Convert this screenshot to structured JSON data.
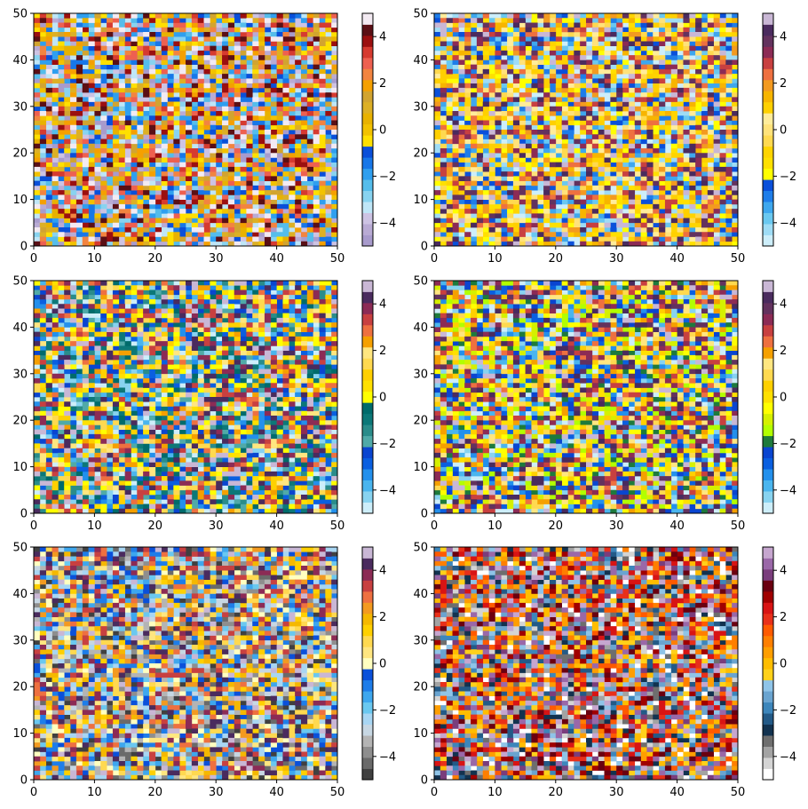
{
  "chart_data": [
    {
      "type": "heatmap",
      "seed": 11,
      "xlim": [
        0,
        50
      ],
      "ylim": [
        0,
        50
      ],
      "x_ticks": [
        "0",
        "10",
        "20",
        "30",
        "40",
        "50"
      ],
      "y_ticks": [
        "0",
        "10",
        "20",
        "30",
        "40",
        "50"
      ],
      "grid": false,
      "colorbar": {
        "vmin": -5,
        "vmax": 5,
        "ticks": [
          "−4",
          "−2",
          "0",
          "2",
          "4"
        ],
        "colors": [
          "#a89bcc",
          "#b9abd4",
          "#cdc3e3",
          "#bfe6f7",
          "#88d3f0",
          "#55bdeb",
          "#2f9fef",
          "#1777e8",
          "#0a4fd9",
          "#ffe000",
          "#f2c200",
          "#e8b200",
          "#ddb025",
          "#d2a430",
          "#f5a000",
          "#f28440",
          "#ee6050",
          "#d63a30",
          "#9b0f10",
          "#5a0f15",
          "#f3eaf2"
        ]
      }
    },
    {
      "type": "heatmap",
      "seed": 22,
      "xlim": [
        0,
        50
      ],
      "ylim": [
        0,
        50
      ],
      "x_ticks": [
        "0",
        "10",
        "20",
        "30",
        "40",
        "50"
      ],
      "y_ticks": [
        "0",
        "10",
        "20",
        "30",
        "40",
        "50"
      ],
      "grid": false,
      "colorbar": {
        "vmin": -5,
        "vmax": 5,
        "ticks": [
          "−4",
          "−2",
          "0",
          "2",
          "4"
        ],
        "colors": [
          "#cdeefa",
          "#9fdcf5",
          "#6ac8f0",
          "#3ea7ee",
          "#1e7de9",
          "#0a50da",
          "#ffff00",
          "#ffe000",
          "#ffd400",
          "#ffd950",
          "#ffe27a",
          "#ffec9a",
          "#ffd000",
          "#f7b500",
          "#f39a20",
          "#ee7040",
          "#c84040",
          "#8c2b55",
          "#63325e",
          "#4a2b5e",
          "#c9b7d5"
        ]
      }
    },
    {
      "type": "heatmap",
      "seed": 33,
      "xlim": [
        0,
        50
      ],
      "ylim": [
        0,
        50
      ],
      "x_ticks": [
        "0",
        "10",
        "20",
        "30",
        "40",
        "50"
      ],
      "y_ticks": [
        "0",
        "10",
        "20",
        "30",
        "40",
        "50"
      ],
      "grid": false,
      "colorbar": {
        "vmin": -5,
        "vmax": 5,
        "ticks": [
          "−4",
          "−2",
          "0",
          "2",
          "4"
        ],
        "colors": [
          "#cdeefa",
          "#88d3f0",
          "#4ab5ee",
          "#2390ec",
          "#0a5fe0",
          "#0a45d0",
          "#50aaa8",
          "#2a8c8a",
          "#0c7878",
          "#006b6b",
          "#ffff00",
          "#ffe000",
          "#ffd000",
          "#ffd950",
          "#ffe680",
          "#f5a000",
          "#ee7040",
          "#c84040",
          "#8c2b55",
          "#4a2b5e",
          "#c9b7d5"
        ]
      }
    },
    {
      "type": "heatmap",
      "seed": 44,
      "xlim": [
        0,
        50
      ],
      "ylim": [
        0,
        50
      ],
      "x_ticks": [
        "0",
        "10",
        "20",
        "30",
        "40",
        "50"
      ],
      "y_ticks": [
        "0",
        "10",
        "20",
        "30",
        "40",
        "50"
      ],
      "grid": false,
      "colorbar": {
        "vmin": -5,
        "vmax": 5,
        "ticks": [
          "−4",
          "−2",
          "0",
          "2",
          "4"
        ],
        "colors": [
          "#cdeefa",
          "#88d3f0",
          "#4ab5ee",
          "#2390ec",
          "#0a5fe0",
          "#0a45d0",
          "#1e7a3c",
          "#b2ff00",
          "#d5f000",
          "#ffff00",
          "#ffe000",
          "#ffd000",
          "#ffd950",
          "#ffe680",
          "#f5a000",
          "#ee7040",
          "#c84040",
          "#8c2b55",
          "#63325e",
          "#4a2b5e",
          "#c9b7d5"
        ]
      }
    },
    {
      "type": "heatmap",
      "seed": 55,
      "xlim": [
        0,
        50
      ],
      "ylim": [
        0,
        50
      ],
      "x_ticks": [
        "0",
        "10",
        "20",
        "30",
        "40",
        "50"
      ],
      "y_ticks": [
        "0",
        "10",
        "20",
        "30",
        "40",
        "50"
      ],
      "grid": false,
      "colorbar": {
        "vmin": -5,
        "vmax": 5,
        "ticks": [
          "−4",
          "−2",
          "0",
          "2",
          "4"
        ],
        "colors": [
          "#404040",
          "#6a6a6a",
          "#8e8e8e",
          "#b4b4b4",
          "#c7d7e3",
          "#a8d6f3",
          "#6ac8f0",
          "#3ea7ee",
          "#1e7de9",
          "#0a50da",
          "#ffffc0",
          "#ffe680",
          "#ffd950",
          "#ffd000",
          "#f5b800",
          "#f39a20",
          "#ee7040",
          "#c84040",
          "#8c2b55",
          "#4a2b5e",
          "#c9b7d5"
        ]
      }
    },
    {
      "type": "heatmap",
      "seed": 66,
      "xlim": [
        0,
        50
      ],
      "ylim": [
        0,
        50
      ],
      "x_ticks": [
        "0",
        "10",
        "20",
        "30",
        "40",
        "50"
      ],
      "y_ticks": [
        "0",
        "10",
        "20",
        "30",
        "40",
        "50"
      ],
      "grid": false,
      "colorbar": {
        "vmin": -5,
        "vmax": 5,
        "ticks": [
          "−4",
          "−2",
          "0",
          "2",
          "4"
        ],
        "colors": [
          "#ffffff",
          "#d4d4d4",
          "#a3a3a3",
          "#6e6e6e",
          "#12324f",
          "#235a87",
          "#3d86bb",
          "#6aa4d0",
          "#8fc4e8",
          "#ffd11a",
          "#ffbd00",
          "#ff9e00",
          "#ff7f00",
          "#ff5a00",
          "#e8301a",
          "#d81414",
          "#a00000",
          "#6a0010",
          "#7a3d7c",
          "#9a68a8",
          "#c6a6cf"
        ]
      }
    }
  ]
}
